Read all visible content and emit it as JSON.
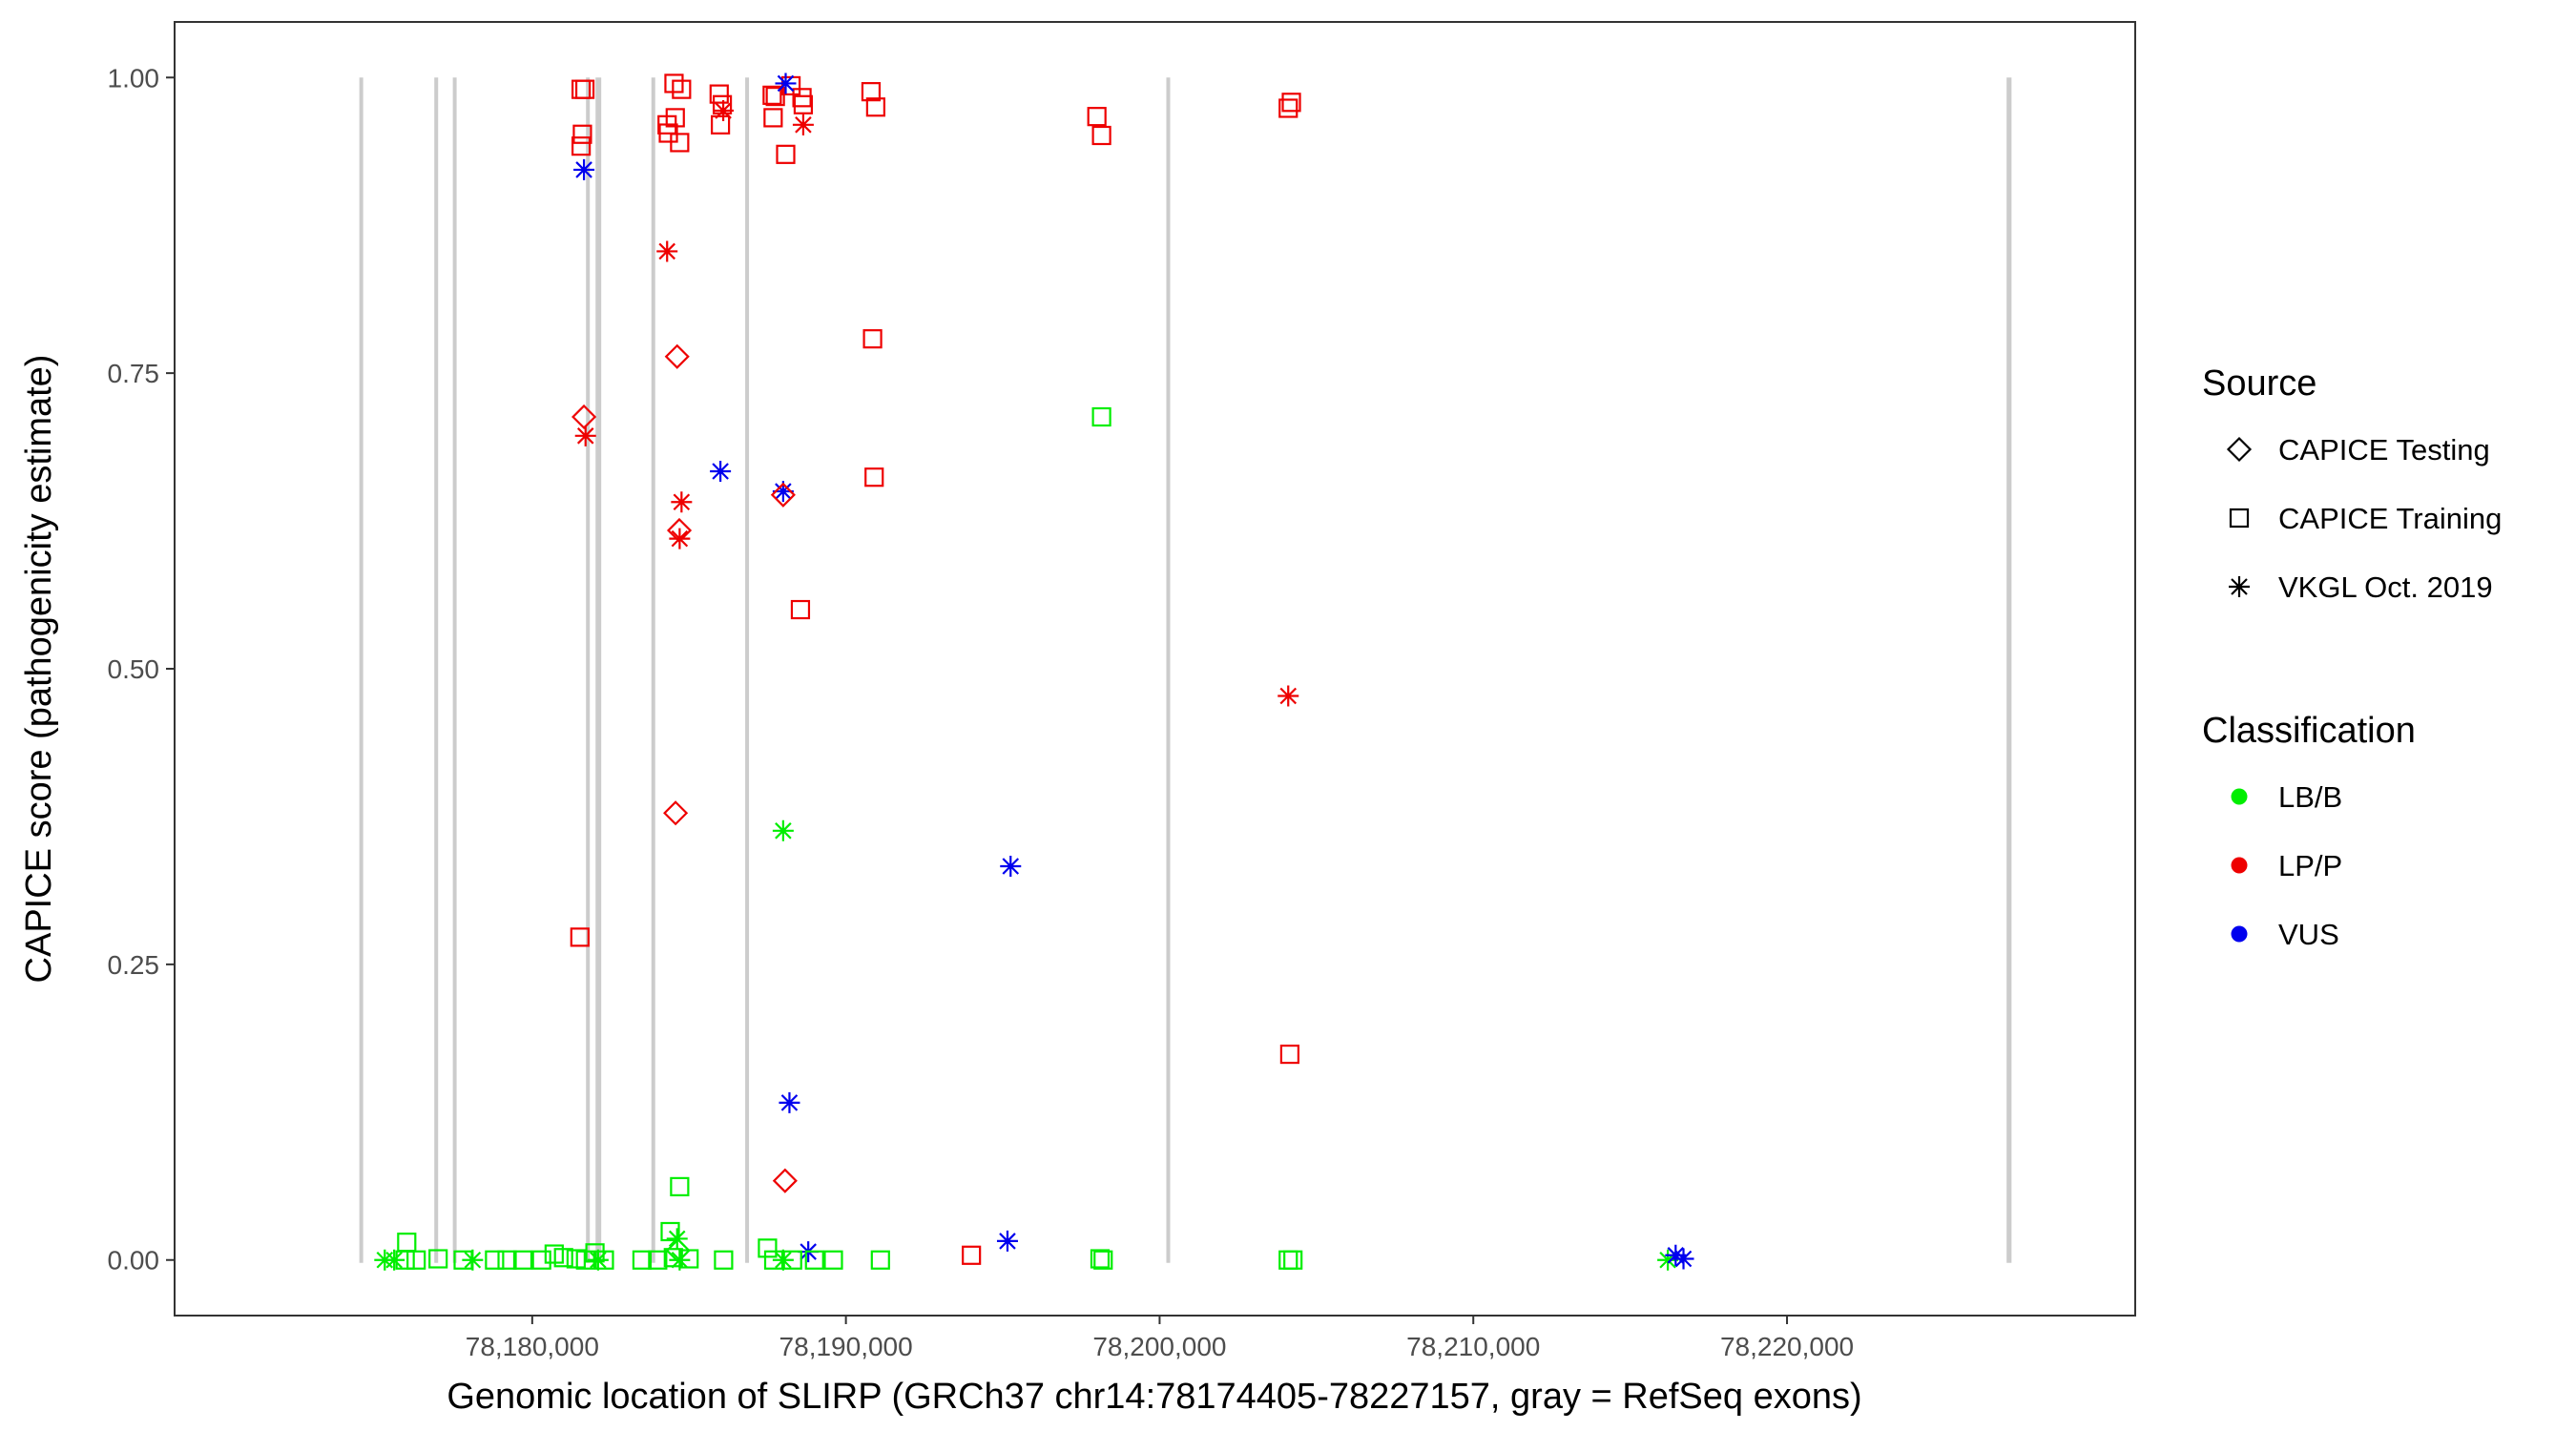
{
  "chart_data": {
    "type": "scatter",
    "xlabel": "Genomic location of SLIRP (GRCh37 chr14:78174405-78227157, gray = RefSeq exons)",
    "ylabel": "CAPICE score (pathogenicity estimate)",
    "xlim": [
      78168600,
      78231100
    ],
    "ylim": [
      -0.047,
      1.047
    ],
    "x_ticks": [
      78180000,
      78190000,
      78200000,
      78210000,
      78220000
    ],
    "x_tick_labels": [
      "78,180,000",
      "78,190,000",
      "78,200,000",
      "78,210,000",
      "78,220,000"
    ],
    "y_ticks": [
      0,
      0.25,
      0.5,
      0.75,
      1.0
    ],
    "y_tick_labels": [
      "0.00",
      "0.25",
      "0.50",
      "0.75",
      "1.00"
    ],
    "grid": false,
    "exon_color": "#cccccc",
    "exons": [
      [
        78174500,
        78174600
      ],
      [
        78176900,
        78176980
      ],
      [
        78177500,
        78177560
      ],
      [
        78181750,
        78181800
      ],
      [
        78182020,
        78182200
      ],
      [
        78183800,
        78183920
      ],
      [
        78186820,
        78186880
      ],
      [
        78200240,
        78200310
      ],
      [
        78227000,
        78227157
      ]
    ],
    "legend": {
      "placement": "right",
      "source_title": "Source",
      "source_items": [
        {
          "shape": "diamond",
          "label": "CAPICE Testing"
        },
        {
          "shape": "square",
          "label": "CAPICE Training"
        },
        {
          "shape": "asterisk",
          "label": "VKGL Oct. 2019"
        }
      ],
      "class_title": "Classification",
      "class_items": [
        {
          "class": "LB/B",
          "label": "LB/B",
          "color": "#00ee00"
        },
        {
          "class": "LP/P",
          "label": "LP/P",
          "color": "#ee0000"
        },
        {
          "class": "VUS",
          "label": "VUS",
          "color": "#0000ee"
        }
      ]
    },
    "points": [
      {
        "x": 78181560,
        "y": 0.99,
        "source": "square",
        "class": "LP/P"
      },
      {
        "x": 78181680,
        "y": 0.99,
        "source": "square",
        "class": "LP/P"
      },
      {
        "x": 78181600,
        "y": 0.952,
        "source": "square",
        "class": "LP/P"
      },
      {
        "x": 78181560,
        "y": 0.942,
        "source": "square",
        "class": "LP/P"
      },
      {
        "x": 78181520,
        "y": 0.273,
        "source": "square",
        "class": "LP/P"
      },
      {
        "x": 78181650,
        "y": 0.713,
        "source": "diamond",
        "class": "LP/P"
      },
      {
        "x": 78181700,
        "y": 0.697,
        "source": "asterisk",
        "class": "LP/P"
      },
      {
        "x": 78181650,
        "y": 0.922,
        "source": "asterisk",
        "class": "VUS"
      },
      {
        "x": 78184520,
        "y": 0.995,
        "source": "square",
        "class": "LP/P"
      },
      {
        "x": 78184760,
        "y": 0.99,
        "source": "square",
        "class": "LP/P"
      },
      {
        "x": 78184300,
        "y": 0.96,
        "source": "square",
        "class": "LP/P"
      },
      {
        "x": 78184560,
        "y": 0.966,
        "source": "square",
        "class": "LP/P"
      },
      {
        "x": 78184340,
        "y": 0.953,
        "source": "square",
        "class": "LP/P"
      },
      {
        "x": 78184700,
        "y": 0.945,
        "source": "square",
        "class": "LP/P"
      },
      {
        "x": 78184300,
        "y": 0.853,
        "source": "asterisk",
        "class": "LP/P"
      },
      {
        "x": 78184620,
        "y": 0.764,
        "source": "diamond",
        "class": "LP/P"
      },
      {
        "x": 78184760,
        "y": 0.641,
        "source": "asterisk",
        "class": "LP/P"
      },
      {
        "x": 78184690,
        "y": 0.617,
        "source": "diamond",
        "class": "LP/P"
      },
      {
        "x": 78184700,
        "y": 0.61,
        "source": "asterisk",
        "class": "LP/P"
      },
      {
        "x": 78184570,
        "y": 0.378,
        "source": "diamond",
        "class": "LP/P"
      },
      {
        "x": 78185960,
        "y": 0.986,
        "source": "square",
        "class": "LP/P"
      },
      {
        "x": 78186060,
        "y": 0.977,
        "source": "square",
        "class": "LP/P"
      },
      {
        "x": 78186090,
        "y": 0.972,
        "source": "asterisk",
        "class": "LP/P"
      },
      {
        "x": 78186000,
        "y": 0.96,
        "source": "square",
        "class": "LP/P"
      },
      {
        "x": 78186000,
        "y": 0.667,
        "source": "asterisk",
        "class": "VUS"
      },
      {
        "x": 78187650,
        "y": 0.985,
        "source": "square",
        "class": "LP/P"
      },
      {
        "x": 78187750,
        "y": 0.984,
        "source": "square",
        "class": "LP/P"
      },
      {
        "x": 78188250,
        "y": 0.993,
        "source": "square",
        "class": "LP/P"
      },
      {
        "x": 78188600,
        "y": 0.983,
        "source": "square",
        "class": "LP/P"
      },
      {
        "x": 78188640,
        "y": 0.977,
        "source": "square",
        "class": "LP/P"
      },
      {
        "x": 78187680,
        "y": 0.966,
        "source": "square",
        "class": "LP/P"
      },
      {
        "x": 78188640,
        "y": 0.96,
        "source": "asterisk",
        "class": "LP/P"
      },
      {
        "x": 78188080,
        "y": 0.935,
        "source": "square",
        "class": "LP/P"
      },
      {
        "x": 78188080,
        "y": 0.995,
        "source": "asterisk",
        "class": "VUS"
      },
      {
        "x": 78188000,
        "y": 0.65,
        "source": "asterisk",
        "class": "VUS"
      },
      {
        "x": 78188000,
        "y": 0.647,
        "source": "diamond",
        "class": "LP/P"
      },
      {
        "x": 78188550,
        "y": 0.55,
        "source": "square",
        "class": "LP/P"
      },
      {
        "x": 78188000,
        "y": 0.363,
        "source": "asterisk",
        "class": "LB/B"
      },
      {
        "x": 78188200,
        "y": 0.133,
        "source": "asterisk",
        "class": "VUS"
      },
      {
        "x": 78188060,
        "y": 0.067,
        "source": "diamond",
        "class": "LP/P"
      },
      {
        "x": 78190800,
        "y": 0.988,
        "source": "square",
        "class": "LP/P"
      },
      {
        "x": 78190950,
        "y": 0.975,
        "source": "square",
        "class": "LP/P"
      },
      {
        "x": 78190850,
        "y": 0.779,
        "source": "square",
        "class": "LP/P"
      },
      {
        "x": 78190900,
        "y": 0.662,
        "source": "square",
        "class": "LP/P"
      },
      {
        "x": 78198000,
        "y": 0.967,
        "source": "square",
        "class": "LP/P"
      },
      {
        "x": 78198150,
        "y": 0.951,
        "source": "square",
        "class": "LP/P"
      },
      {
        "x": 78198150,
        "y": 0.713,
        "source": "square",
        "class": "LB/B"
      },
      {
        "x": 78204200,
        "y": 0.979,
        "source": "square",
        "class": "LP/P"
      },
      {
        "x": 78204100,
        "y": 0.974,
        "source": "square",
        "class": "LP/P"
      },
      {
        "x": 78204100,
        "y": 0.477,
        "source": "asterisk",
        "class": "LP/P"
      },
      {
        "x": 78204150,
        "y": 0.174,
        "source": "square",
        "class": "LP/P"
      },
      {
        "x": 78195250,
        "y": 0.333,
        "source": "asterisk",
        "class": "VUS"
      },
      {
        "x": 78195150,
        "y": 0.016,
        "source": "asterisk",
        "class": "VUS"
      },
      {
        "x": 78194000,
        "y": 0.004,
        "source": "square",
        "class": "LP/P"
      },
      {
        "x": 78188800,
        "y": 0.007,
        "source": "asterisk",
        "class": "VUS"
      },
      {
        "x": 78184700,
        "y": 0.062,
        "source": "square",
        "class": "LB/B"
      },
      {
        "x": 78184400,
        "y": 0.024,
        "source": "square",
        "class": "LB/B"
      },
      {
        "x": 78184620,
        "y": 0.018,
        "source": "asterisk",
        "class": "LB/B"
      },
      {
        "x": 78184650,
        "y": 0.008,
        "source": "diamond",
        "class": "LB/B"
      },
      {
        "x": 78187500,
        "y": 0.01,
        "source": "square",
        "class": "LB/B"
      },
      {
        "x": 78176000,
        "y": 0.015,
        "source": "square",
        "class": "LB/B"
      },
      {
        "x": 78180700,
        "y": 0.005,
        "source": "square",
        "class": "LB/B"
      },
      {
        "x": 78182000,
        "y": 0.006,
        "source": "square",
        "class": "LB/B"
      },
      {
        "x": 78175300,
        "y": 0.0,
        "source": "asterisk",
        "class": "LB/B"
      },
      {
        "x": 78175600,
        "y": 0.0,
        "source": "asterisk",
        "class": "LB/B"
      },
      {
        "x": 78175950,
        "y": 0.0,
        "source": "square",
        "class": "LB/B"
      },
      {
        "x": 78176300,
        "y": 0.0,
        "source": "square",
        "class": "LB/B"
      },
      {
        "x": 78177000,
        "y": 0.001,
        "source": "square",
        "class": "LB/B"
      },
      {
        "x": 78177800,
        "y": 0.0,
        "source": "square",
        "class": "LB/B"
      },
      {
        "x": 78178100,
        "y": 0.0,
        "source": "asterisk",
        "class": "LB/B"
      },
      {
        "x": 78178800,
        "y": 0.0,
        "source": "square",
        "class": "LB/B"
      },
      {
        "x": 78179200,
        "y": 0.0,
        "source": "square",
        "class": "LB/B"
      },
      {
        "x": 78179700,
        "y": 0.0,
        "source": "square",
        "class": "LB/B"
      },
      {
        "x": 78180300,
        "y": 0.0,
        "source": "square",
        "class": "LB/B"
      },
      {
        "x": 78181000,
        "y": 0.002,
        "source": "square",
        "class": "LB/B"
      },
      {
        "x": 78181400,
        "y": 0.001,
        "source": "square",
        "class": "LB/B"
      },
      {
        "x": 78181700,
        "y": 0.0,
        "source": "square",
        "class": "LB/B"
      },
      {
        "x": 78182100,
        "y": 0.0,
        "source": "asterisk",
        "class": "LB/B"
      },
      {
        "x": 78182300,
        "y": 0.0,
        "source": "square",
        "class": "LB/B"
      },
      {
        "x": 78183500,
        "y": 0.0,
        "source": "square",
        "class": "LB/B"
      },
      {
        "x": 78184000,
        "y": 0.0,
        "source": "square",
        "class": "LB/B"
      },
      {
        "x": 78184500,
        "y": 0.002,
        "source": "square",
        "class": "LB/B"
      },
      {
        "x": 78184700,
        "y": 0.0,
        "source": "asterisk",
        "class": "LB/B"
      },
      {
        "x": 78185000,
        "y": 0.001,
        "source": "square",
        "class": "LB/B"
      },
      {
        "x": 78186100,
        "y": 0.0,
        "source": "square",
        "class": "LB/B"
      },
      {
        "x": 78187700,
        "y": 0.0,
        "source": "square",
        "class": "LB/B"
      },
      {
        "x": 78188000,
        "y": 0.0,
        "source": "asterisk",
        "class": "LB/B"
      },
      {
        "x": 78188300,
        "y": 0.0,
        "source": "square",
        "class": "LB/B"
      },
      {
        "x": 78189000,
        "y": 0.0,
        "source": "square",
        "class": "LB/B"
      },
      {
        "x": 78189600,
        "y": 0.0,
        "source": "square",
        "class": "LB/B"
      },
      {
        "x": 78191100,
        "y": 0.0,
        "source": "square",
        "class": "LB/B"
      },
      {
        "x": 78198100,
        "y": 0.001,
        "source": "square",
        "class": "LB/B"
      },
      {
        "x": 78198200,
        "y": 0.0,
        "source": "square",
        "class": "LB/B"
      },
      {
        "x": 78204100,
        "y": 0.0,
        "source": "square",
        "class": "LB/B"
      },
      {
        "x": 78204250,
        "y": 0.0,
        "source": "square",
        "class": "LB/B"
      },
      {
        "x": 78216200,
        "y": 0.0,
        "source": "asterisk",
        "class": "LB/B"
      },
      {
        "x": 78216450,
        "y": 0.004,
        "source": "asterisk",
        "class": "VUS"
      },
      {
        "x": 78216700,
        "y": 0.001,
        "source": "asterisk",
        "class": "VUS"
      }
    ]
  }
}
